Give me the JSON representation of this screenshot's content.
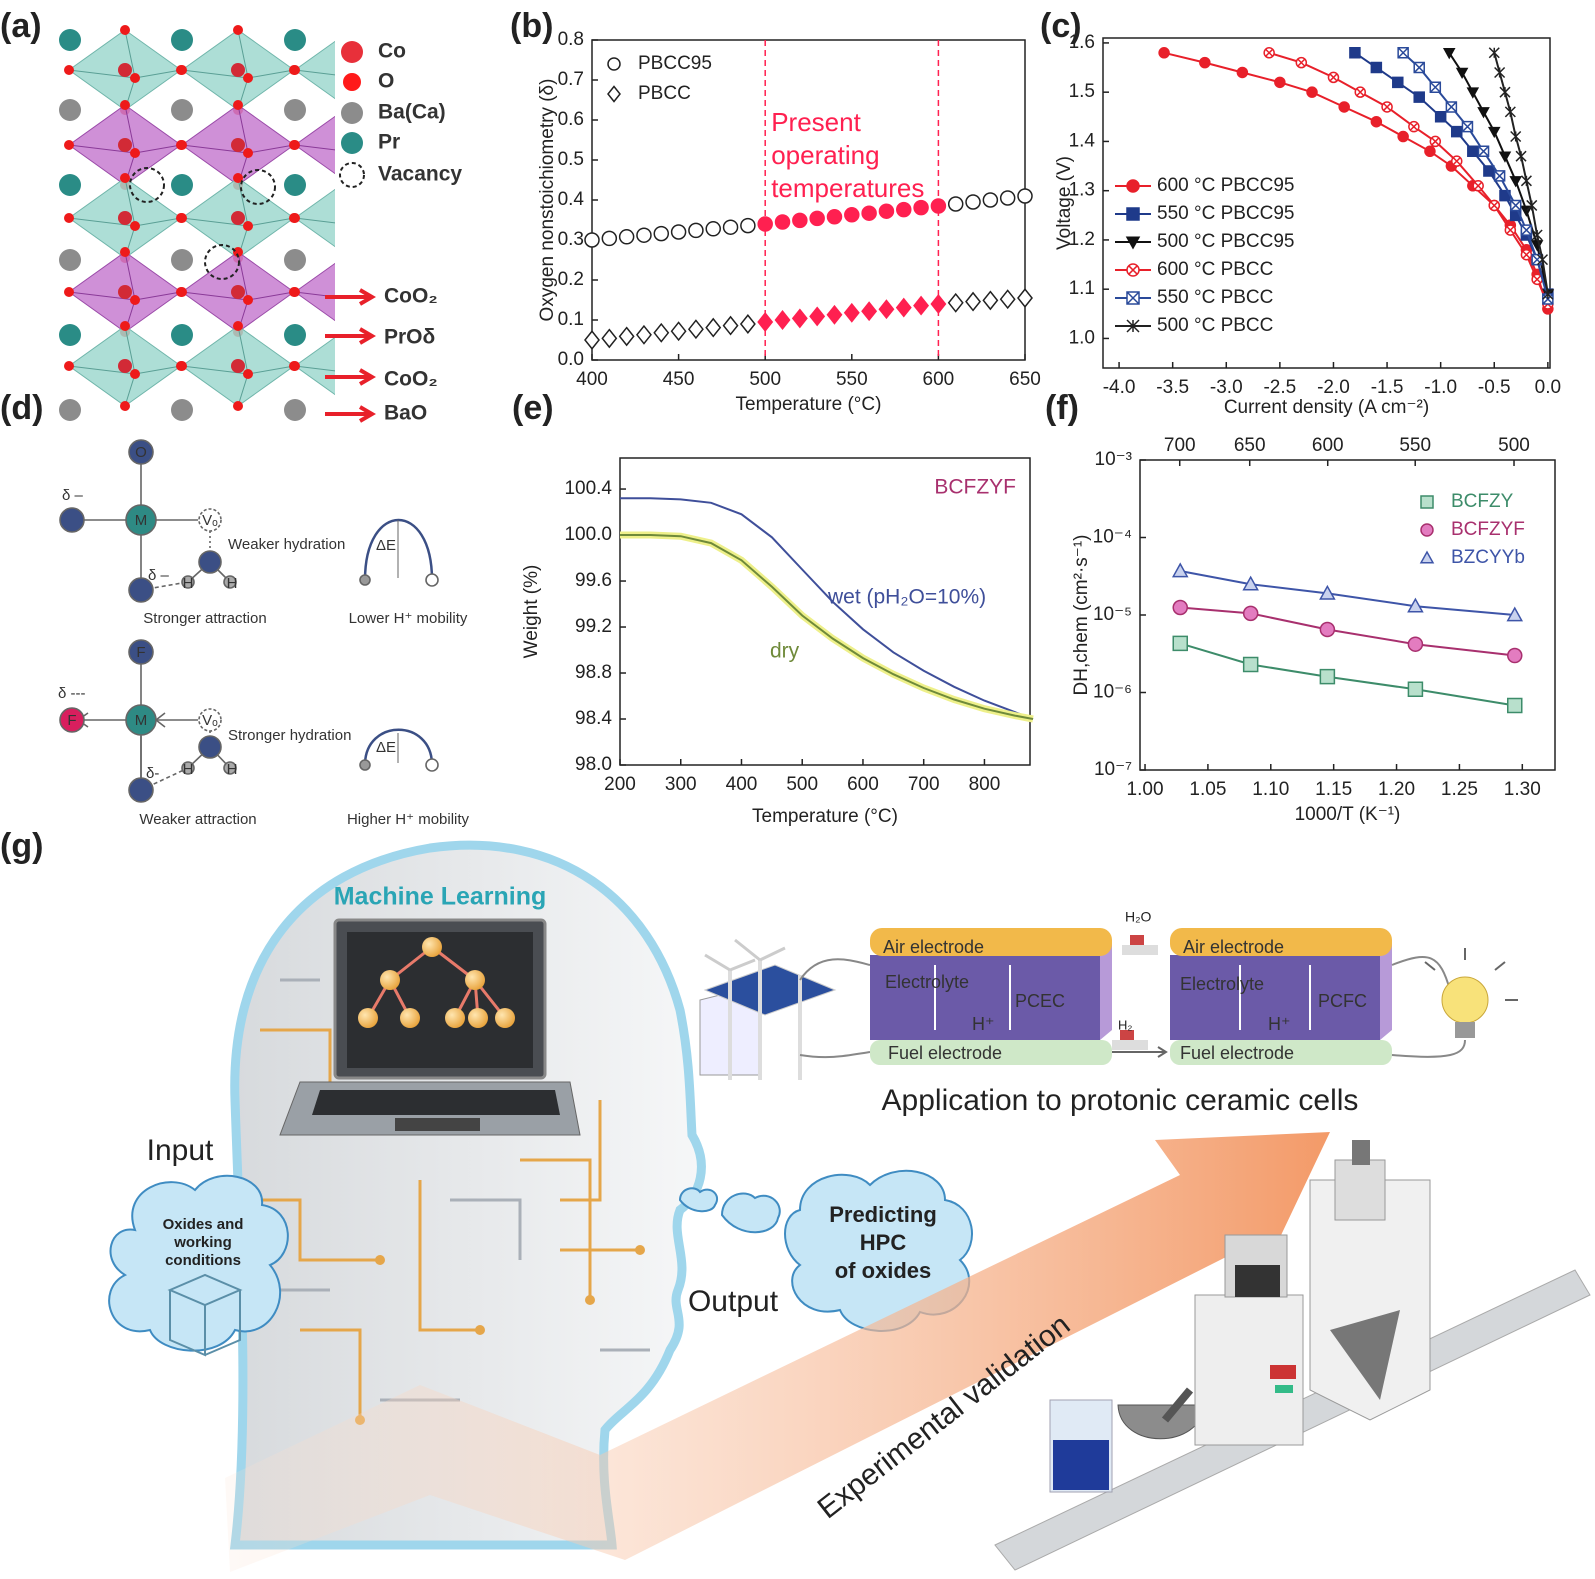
{
  "panel_a": {
    "label": "(a)",
    "legend": [
      "Co",
      "O",
      "Ba(Ca)",
      "Pr",
      "Vacancy"
    ],
    "layers": [
      "CoO₂",
      "PrOδ",
      "CoO₂",
      "BaO"
    ]
  },
  "panel_d": {
    "label": "(d)",
    "top": {
      "atoms": [
        "O",
        "M",
        "Vₒ",
        "H",
        "H"
      ],
      "charges": [
        "δ –",
        "δ –"
      ],
      "hydration": "Weaker hydration",
      "attraction": "Stronger attraction",
      "barrier": "ΔE",
      "mobility": "Lower H⁺ mobility"
    },
    "bottom": {
      "atoms": [
        "F",
        "M",
        "Vₒ",
        "H",
        "H"
      ],
      "charges": [
        "δ ---",
        "δ-"
      ],
      "hydration": "Stronger hydration",
      "attraction": "Weaker attraction",
      "barrier": "ΔE",
      "mobility": "Higher H⁺ mobility"
    }
  },
  "panel_g": {
    "label": "(g)",
    "ml_title": "Machine Learning",
    "input": "Input",
    "input_cloud": [
      "Oxides and",
      "working",
      "conditions"
    ],
    "output": "Output",
    "output_cloud": [
      "Predicting",
      "HPC",
      "of oxides"
    ],
    "cells": [
      {
        "air": "Air electrode",
        "electrolyte": "Electrolyte",
        "name": "PCEC",
        "ion": "H⁺",
        "fuel": "Fuel electrode"
      },
      {
        "air": "Air electrode",
        "electrolyte": "Electrolyte",
        "name": "PCFC",
        "ion": "H⁺",
        "fuel": "Fuel electrode"
      }
    ],
    "h2o": "H₂O",
    "h2": "H₂",
    "application": "Application to protonic ceramic cells",
    "validation": "Experimental validation"
  },
  "chart_data": [
    {
      "type": "scatter",
      "label": "(b)",
      "xlabel": "Temperature (°C)",
      "ylabel": "Oxygen nonstoichiometry (δ)",
      "x": [
        400,
        410,
        420,
        430,
        440,
        450,
        460,
        470,
        480,
        490,
        500,
        510,
        520,
        530,
        540,
        550,
        560,
        570,
        580,
        590,
        600,
        610,
        620,
        630,
        640,
        650
      ],
      "series": [
        {
          "name": "PBCC95",
          "marker": "circle",
          "color": "#222222",
          "fill": "#ffffff",
          "values": [
            0.3,
            0.304,
            0.308,
            0.312,
            0.316,
            0.32,
            0.324,
            0.328,
            0.332,
            0.336,
            0.34,
            0.345,
            0.349,
            0.354,
            0.358,
            0.363,
            0.367,
            0.372,
            0.376,
            0.381,
            0.385,
            0.39,
            0.395,
            0.4,
            0.405,
            0.41
          ]
        },
        {
          "name": "PBCC",
          "marker": "diamond",
          "color": "#222222",
          "fill": "#ffffff",
          "values": [
            0.05,
            0.054,
            0.059,
            0.063,
            0.068,
            0.072,
            0.077,
            0.081,
            0.086,
            0.09,
            0.095,
            0.1,
            0.104,
            0.109,
            0.113,
            0.118,
            0.122,
            0.127,
            0.131,
            0.136,
            0.14,
            0.143,
            0.146,
            0.149,
            0.152,
            0.155
          ]
        }
      ],
      "highlight": {
        "range": [
          500,
          600
        ],
        "color": "#ff2050",
        "annotation": [
          "Present",
          "operating",
          "temperatures"
        ]
      },
      "xlim": [
        400,
        650
      ],
      "ylim": [
        0,
        0.8
      ],
      "xticks": [
        400,
        450,
        500,
        550,
        600,
        650
      ],
      "yticks": [
        {
          "value": 0,
          "label": "0.0"
        },
        0.1,
        0.2,
        0.3,
        0.4,
        0.5,
        0.6,
        0.7,
        0.8
      ],
      "legend": "upper left"
    },
    {
      "type": "line",
      "label": "(c)",
      "xlabel": "Current density (A cm⁻²)",
      "ylabel": "Voltage (V)",
      "series": [
        {
          "name": "600 °C PBCC95",
          "marker": "circle",
          "color": "#e8202a",
          "fill": "#e8202a",
          "x": [
            -3.58,
            -3.2,
            -2.85,
            -2.5,
            -2.2,
            -1.9,
            -1.6,
            -1.35,
            -1.1,
            -0.9,
            -0.7,
            -0.5,
            -0.35,
            -0.2,
            -0.1,
            0
          ],
          "values": [
            1.58,
            1.56,
            1.54,
            1.52,
            1.5,
            1.47,
            1.44,
            1.41,
            1.38,
            1.35,
            1.31,
            1.27,
            1.23,
            1.18,
            1.13,
            1.06
          ]
        },
        {
          "name": "550 °C PBCC95",
          "marker": "square",
          "color": "#1f3a8a",
          "fill": "#1f3a8a",
          "x": [
            -1.8,
            -1.6,
            -1.4,
            -1.2,
            -1.0,
            -0.85,
            -0.7,
            -0.55,
            -0.4,
            -0.3,
            -0.2,
            -0.1,
            0
          ],
          "values": [
            1.58,
            1.55,
            1.52,
            1.49,
            1.45,
            1.42,
            1.38,
            1.34,
            1.29,
            1.25,
            1.21,
            1.16,
            1.09
          ]
        },
        {
          "name": "500 °C PBCC95",
          "marker": "triangle-down",
          "color": "#111111",
          "fill": "#111111",
          "x": [
            -0.92,
            -0.8,
            -0.7,
            -0.6,
            -0.5,
            -0.4,
            -0.3,
            -0.2,
            -0.1,
            0
          ],
          "values": [
            1.58,
            1.54,
            1.5,
            1.46,
            1.42,
            1.37,
            1.32,
            1.26,
            1.19,
            1.09
          ]
        },
        {
          "name": "600 °C PBCC",
          "marker": "circle-x",
          "color": "#e8202a",
          "fill": "#ffffff",
          "x": [
            -2.6,
            -2.3,
            -2.0,
            -1.75,
            -1.5,
            -1.25,
            -1.05,
            -0.85,
            -0.65,
            -0.5,
            -0.35,
            -0.2,
            -0.1,
            0
          ],
          "values": [
            1.58,
            1.56,
            1.53,
            1.5,
            1.47,
            1.43,
            1.4,
            1.36,
            1.31,
            1.27,
            1.22,
            1.17,
            1.12,
            1.07
          ]
        },
        {
          "name": "550 °C PBCC",
          "marker": "square-x",
          "color": "#2a4a9a",
          "fill": "#ffffff",
          "x": [
            -1.35,
            -1.2,
            -1.05,
            -0.9,
            -0.75,
            -0.6,
            -0.45,
            -0.3,
            -0.2,
            -0.1,
            0
          ],
          "values": [
            1.58,
            1.55,
            1.51,
            1.47,
            1.43,
            1.38,
            1.33,
            1.27,
            1.22,
            1.16,
            1.08
          ]
        },
        {
          "name": "500 °C PBCC",
          "marker": "star",
          "color": "#222222",
          "fill": "#ffffff",
          "x": [
            -0.5,
            -0.45,
            -0.4,
            -0.35,
            -0.3,
            -0.25,
            -0.2,
            -0.15,
            -0.1,
            -0.05,
            0
          ],
          "values": [
            1.58,
            1.54,
            1.5,
            1.46,
            1.41,
            1.37,
            1.32,
            1.27,
            1.21,
            1.16,
            1.09
          ]
        }
      ],
      "xlim": [
        -4.15,
        0.02
      ],
      "ylim": [
        0.94,
        1.61
      ],
      "xticks": [
        {
          "value": -4,
          "label": "-4.0"
        },
        -3.5,
        {
          "value": -3,
          "label": "-3.0"
        },
        -2.5,
        {
          "value": -2,
          "label": "-2.0"
        },
        -1.5,
        {
          "value": -1,
          "label": "-1.0"
        },
        -0.5,
        {
          "value": 0,
          "label": "0.0"
        }
      ],
      "yticks": [
        {
          "value": 1,
          "label": "1.0"
        },
        1.1,
        1.2,
        1.3,
        1.4,
        1.5,
        1.6
      ],
      "legend": "lower left"
    },
    {
      "type": "line",
      "label": "(e)",
      "xlabel": "Temperature (°C)",
      "ylabel": "Weight (%)",
      "annotation": "BCFZYF",
      "annotation_color": "#a8306e",
      "x": [
        200,
        250,
        300,
        350,
        400,
        450,
        500,
        550,
        600,
        650,
        700,
        750,
        800,
        850,
        880
      ],
      "series": [
        {
          "name": "wet (pH₂O=10%)",
          "color": "#3f4f9a",
          "values": [
            100.32,
            100.32,
            100.31,
            100.28,
            100.18,
            99.98,
            99.7,
            99.42,
            99.18,
            98.98,
            98.82,
            98.68,
            98.56,
            98.46,
            98.4
          ]
        },
        {
          "name": "dry",
          "color": "#6f8a3a",
          "glow": "#eef08a",
          "values": [
            100.0,
            100.0,
            99.99,
            99.93,
            99.78,
            99.55,
            99.3,
            99.1,
            98.93,
            98.79,
            98.67,
            98.57,
            98.49,
            98.43,
            98.4
          ]
        }
      ],
      "xlim": [
        200,
        875
      ],
      "ylim": [
        98.0,
        100.67
      ],
      "xticks": [
        200,
        300,
        400,
        500,
        600,
        700,
        800
      ],
      "yticks": [
        {
          "value": 98,
          "label": "98.0"
        },
        98.4,
        98.8,
        99.2,
        99.6,
        {
          "value": 100,
          "label": "100.0"
        },
        100.4
      ],
      "legend": "inline"
    },
    {
      "type": "scatter",
      "label": "(f)",
      "xlabel": "1000/T (K⁻¹)",
      "ylabel": "DH,chem (cm²·s⁻¹)",
      "log_y": true,
      "trend_line": true,
      "x": [
        1.028,
        1.084,
        1.145,
        1.215,
        1.294
      ],
      "series": [
        {
          "name": "BCFZY",
          "marker": "square",
          "color": "#3d8c6a",
          "fill": "#b8e0cc",
          "values": [
            4.3e-06,
            2.3e-06,
            1.6e-06,
            1.1e-06,
            6.8e-07
          ]
        },
        {
          "name": "BCFZYF",
          "marker": "circle",
          "color": "#a8306e",
          "fill": "#e37cc0",
          "values": [
            1.25e-05,
            1.05e-05,
            6.5e-06,
            4.2e-06,
            3e-06
          ]
        },
        {
          "name": "BZCYYb",
          "marker": "triangle-up",
          "color": "#3e55a8",
          "fill": "#c9d2ee",
          "values": [
            3.7e-05,
            2.5e-05,
            1.9e-05,
            1.3e-05,
            1e-05
          ]
        }
      ],
      "xlim": [
        0.996,
        1.326
      ],
      "ylim": [
        1e-07,
        0.001
      ],
      "xticks": [
        {
          "value": 1,
          "label": "1.00"
        },
        1.05,
        {
          "value": 1.1,
          "label": "1.10"
        },
        1.15,
        {
          "value": 1.2,
          "label": "1.20"
        },
        1.25,
        {
          "value": 1.3,
          "label": "1.30"
        }
      ],
      "yticks": [
        {
          "value": 1e-07,
          "label": "10⁻⁷"
        },
        {
          "value": 1e-06,
          "label": "10⁻⁶"
        },
        {
          "value": 1e-05,
          "label": "10⁻⁵"
        },
        {
          "value": 0.0001,
          "label": "10⁻⁴"
        },
        {
          "value": 0.001,
          "label": "10⁻³"
        }
      ],
      "x2ticks": [
        700,
        650,
        600,
        550,
        500
      ],
      "legend": "upper right"
    }
  ]
}
